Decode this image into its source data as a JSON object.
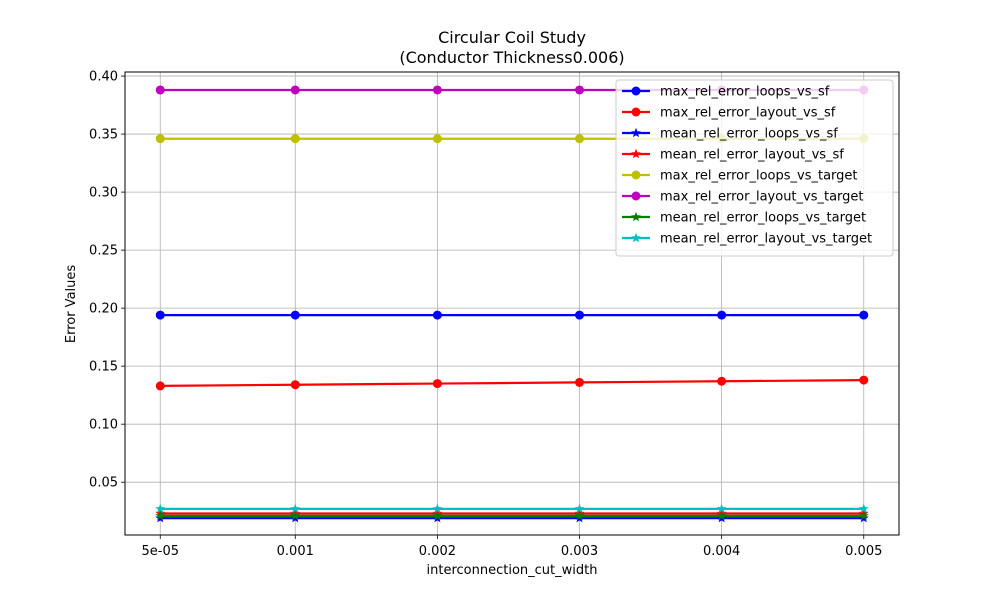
{
  "chart_data": {
    "type": "line",
    "title": [
      "Circular Coil Study",
      "(Conductor Thickness0.006)"
    ],
    "xlabel": "interconnection_cut_width",
    "ylabel": "Error Values",
    "x": [
      5e-05,
      0.001,
      0.002,
      0.003,
      0.004,
      0.005
    ],
    "x_tick_labels": [
      "5e-05",
      "0.001",
      "0.002",
      "0.003",
      "0.004",
      "0.005"
    ],
    "y_ticks": [
      0.05,
      0.1,
      0.15,
      0.2,
      0.25,
      0.3,
      0.35,
      0.4
    ],
    "y_tick_labels": [
      "0.05",
      "0.10",
      "0.15",
      "0.20",
      "0.25",
      "0.30",
      "0.35",
      "0.40"
    ],
    "xlim": [
      -0.000198,
      0.005248
    ],
    "ylim": [
      0.0045,
      0.4035
    ],
    "grid": true,
    "legend_position": "top-right",
    "series": [
      {
        "name": "max_rel_error_loops_vs_sf",
        "color": "#0000ff",
        "marker": "circle",
        "values": [
          0.194,
          0.194,
          0.194,
          0.194,
          0.194,
          0.194
        ]
      },
      {
        "name": "max_rel_error_layout_vs_sf",
        "color": "#ff0000",
        "marker": "circle",
        "values": [
          0.133,
          0.134,
          0.135,
          0.136,
          0.137,
          0.138
        ]
      },
      {
        "name": "mean_rel_error_loops_vs_sf",
        "color": "#0000ff",
        "marker": "star",
        "values": [
          0.019,
          0.019,
          0.019,
          0.019,
          0.019,
          0.019
        ]
      },
      {
        "name": "mean_rel_error_layout_vs_sf",
        "color": "#ff0000",
        "marker": "star",
        "values": [
          0.023,
          0.023,
          0.023,
          0.023,
          0.023,
          0.023
        ]
      },
      {
        "name": "max_rel_error_loops_vs_target",
        "color": "#bfbf00",
        "marker": "circle",
        "values": [
          0.346,
          0.346,
          0.346,
          0.346,
          0.346,
          0.346
        ]
      },
      {
        "name": "max_rel_error_layout_vs_target",
        "color": "#bf00bf",
        "marker": "circle",
        "values": [
          0.388,
          0.388,
          0.388,
          0.388,
          0.388,
          0.388
        ]
      },
      {
        "name": "mean_rel_error_loops_vs_target",
        "color": "#008000",
        "marker": "star",
        "values": [
          0.021,
          0.021,
          0.021,
          0.021,
          0.021,
          0.021
        ]
      },
      {
        "name": "mean_rel_error_layout_vs_target",
        "color": "#00bfbf",
        "marker": "star",
        "values": [
          0.027,
          0.027,
          0.027,
          0.027,
          0.027,
          0.027
        ]
      }
    ]
  }
}
